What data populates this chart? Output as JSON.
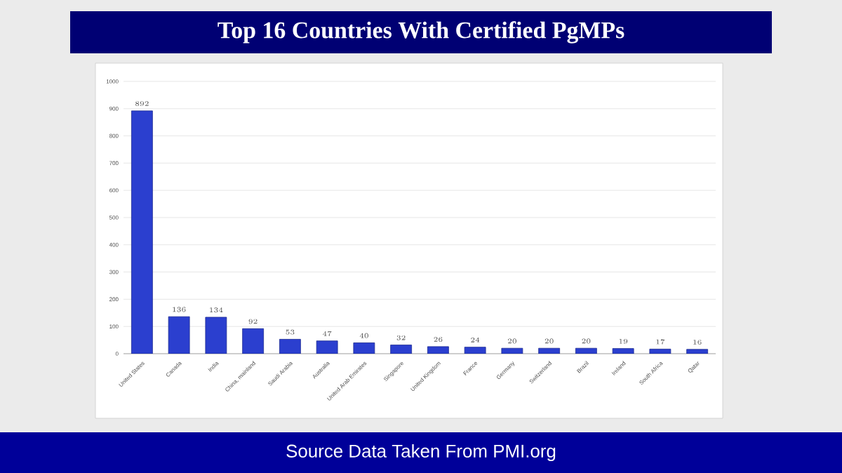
{
  "chart_data": {
    "type": "bar",
    "title": "Top 16 Countries With Certified PgMPs",
    "categories": [
      "United States",
      "Canada",
      "India",
      "China, mainland",
      "Saudi Arabia",
      "Australia",
      "United Arab Emirates",
      "Singapore",
      "United Kingdom",
      "France",
      "Germany",
      "Switzerland",
      "Brazil",
      "Ireland",
      "South Africa",
      "Qatar"
    ],
    "values": [
      892,
      136,
      134,
      92,
      53,
      47,
      40,
      32,
      26,
      24,
      20,
      20,
      20,
      19,
      17,
      16
    ],
    "color": "#2b3fcf",
    "ylim": [
      0,
      1000
    ],
    "yticks": [
      0,
      100,
      200,
      300,
      400,
      500,
      600,
      700,
      800,
      900,
      1000
    ],
    "grid": "y",
    "data_labels": true,
    "annotations": [
      "Source Data Taken From PMI.org"
    ]
  }
}
